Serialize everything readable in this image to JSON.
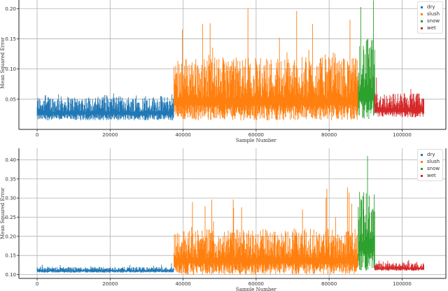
{
  "colors": {
    "dry": "#1f77b4",
    "slush": "#ff7f0e",
    "snow": "#2ca02c",
    "wet": "#d62728",
    "grid": "#b0b0b0"
  },
  "chart_data": [
    {
      "type": "scatter",
      "title": "",
      "xlabel": "Sample Number",
      "ylabel": "Mean Squared Error",
      "x_ticks": [
        "0",
        "20000",
        "40000",
        "60000",
        "80000",
        "100000"
      ],
      "y_ticks": [
        "0.05",
        "0.10",
        "0.15",
        "0.20"
      ],
      "xlim": [
        -5000,
        112000
      ],
      "ylim": [
        0.0,
        0.22
      ],
      "grid": true,
      "legend_position": "upper right",
      "series": [
        {
          "name": "dry",
          "x_range": [
            0,
            37500
          ],
          "y_typical": [
            0.015,
            0.055
          ],
          "y_max": 0.06
        },
        {
          "name": "slush",
          "x_range": [
            37500,
            88000
          ],
          "y_typical": [
            0.015,
            0.12
          ],
          "y_max": 0.207
        },
        {
          "name": "snow",
          "x_range": [
            88000,
            92500
          ],
          "y_typical": [
            0.015,
            0.15
          ],
          "y_max": 0.222
        },
        {
          "name": "wet",
          "x_range": [
            92500,
            106000
          ],
          "y_typical": [
            0.02,
            0.06
          ],
          "y_max": 0.09
        }
      ]
    },
    {
      "type": "scatter",
      "title": "",
      "xlabel": "Sample Number",
      "ylabel": "Mean Squared Error",
      "x_ticks": [
        "0",
        "20000",
        "40000",
        "60000",
        "80000",
        "100000"
      ],
      "y_ticks": [
        "0.10",
        "0.15",
        "0.20",
        "0.25",
        "0.30",
        "0.35",
        "0.40"
      ],
      "xlim": [
        -5000,
        112000
      ],
      "ylim": [
        0.09,
        0.43
      ],
      "grid": true,
      "legend_position": "upper right",
      "series": [
        {
          "name": "dry",
          "x_range": [
            0,
            37500
          ],
          "y_typical": [
            0.105,
            0.12
          ],
          "y_max": 0.13
        },
        {
          "name": "slush",
          "x_range": [
            37500,
            88000
          ],
          "y_typical": [
            0.1,
            0.22
          ],
          "y_max": 0.33
        },
        {
          "name": "snow",
          "x_range": [
            88000,
            92500
          ],
          "y_typical": [
            0.11,
            0.32
          ],
          "y_max": 0.42
        },
        {
          "name": "wet",
          "x_range": [
            92500,
            106000
          ],
          "y_typical": [
            0.11,
            0.13
          ],
          "y_max": 0.14
        }
      ]
    }
  ],
  "legend": {
    "items": [
      "dry",
      "slush",
      "snow",
      "wet"
    ]
  }
}
